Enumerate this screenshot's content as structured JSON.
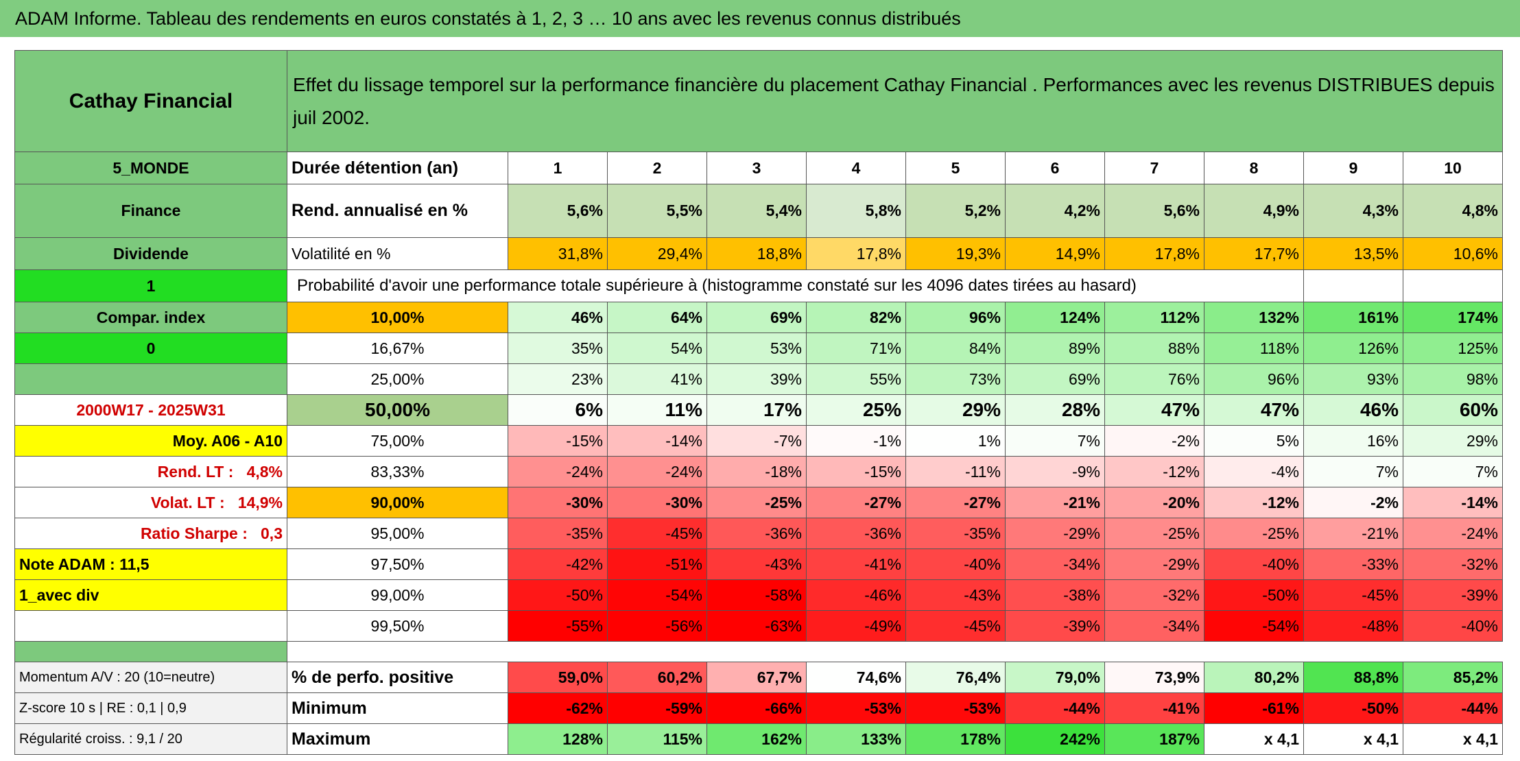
{
  "header": {
    "title": "ADAM Informe. Tableau des rendements en euros constatés à 1, 2, 3 … 10 ans avec les revenus connus distribués"
  },
  "table": {
    "rows": [
      [
        "Cathay Financial",
        "Effet du lissage temporel sur la performance financière du placement Cathay Financial . Performances avec les revenus DISTRIBUES depuis juil 2002."
      ],
      [
        "5_MONDE",
        "Durée détention (an)",
        "1",
        "2",
        "3",
        "4",
        "5",
        "6",
        "7",
        "8",
        "9",
        "10"
      ],
      [
        "Finance",
        "Rend. annualisé en %",
        "5,6%",
        "5,5%",
        "5,4%",
        "5,8%",
        "5,2%",
        "4,2%",
        "5,6%",
        "4,9%",
        "4,3%",
        "4,8%"
      ],
      [
        "Dividende",
        "Volatilité en %",
        "31,8%",
        "29,4%",
        "18,8%",
        "17,8%",
        "19,3%",
        "14,9%",
        "17,8%",
        "17,7%",
        "13,5%",
        "10,6%"
      ],
      [
        "1",
        "Probabilité d'avoir une performance totale supérieure à (histogramme constaté sur les 4096 dates tirées au hasard)"
      ],
      [
        "Compar. index",
        "10,00%",
        "46%",
        "64%",
        "69%",
        "82%",
        "96%",
        "124%",
        "112%",
        "132%",
        "161%",
        "174%"
      ],
      [
        "0",
        "16,67%",
        "35%",
        "54%",
        "53%",
        "71%",
        "84%",
        "89%",
        "88%",
        "118%",
        "126%",
        "125%"
      ],
      [
        null,
        "25,00%",
        "23%",
        "41%",
        "39%",
        "55%",
        "73%",
        "69%",
        "76%",
        "96%",
        "93%",
        "98%"
      ],
      [
        "2000W17 - 2025W31",
        "50,00%",
        "6%",
        "11%",
        "17%",
        "25%",
        "29%",
        "28%",
        "47%",
        "47%",
        "46%",
        "60%"
      ],
      [
        "Moy. A06 - A10",
        "75,00%",
        "-15%",
        "-14%",
        "-7%",
        "-1%",
        "1%",
        "7%",
        "-2%",
        "5%",
        "16%",
        "29%"
      ],
      [
        "Rend. LT :   4,8%",
        "83,33%",
        "-24%",
        "-24%",
        "-18%",
        "-15%",
        "-11%",
        "-9%",
        "-12%",
        "-4%",
        "7%",
        "7%"
      ],
      [
        "Volat. LT :   14,9%",
        "90,00%",
        "-30%",
        "-30%",
        "-25%",
        "-27%",
        "-27%",
        "-21%",
        "-20%",
        "-12%",
        "-2%",
        "-14%"
      ],
      [
        "Ratio Sharpe :   0,3",
        "95,00%",
        "-35%",
        "-45%",
        "-36%",
        "-36%",
        "-35%",
        "-29%",
        "-25%",
        "-25%",
        "-21%",
        "-24%"
      ],
      [
        "Note ADAM : 11,5",
        "97,50%",
        "-42%",
        "-51%",
        "-43%",
        "-41%",
        "-40%",
        "-34%",
        "-29%",
        "-40%",
        "-33%",
        "-32%"
      ],
      [
        "1_avec div",
        "99,00%",
        "-50%",
        "-54%",
        "-58%",
        "-46%",
        "-43%",
        "-38%",
        "-32%",
        "-50%",
        "-45%",
        "-39%"
      ],
      [
        null,
        "99,50%",
        "-55%",
        "-56%",
        "-63%",
        "-49%",
        "-45%",
        "-39%",
        "-34%",
        "-54%",
        "-48%",
        "-40%"
      ],
      [
        "Momentum A/V : 20 (10=neutre)",
        "% de perfo. positive",
        "59,0%",
        "60,2%",
        "67,7%",
        "74,6%",
        "76,4%",
        "79,0%",
        "73,9%",
        "80,2%",
        "88,8%",
        "85,2%"
      ],
      [
        "Z-score 10 s | RE : 0,1 | 0,9",
        "Minimum",
        "-62%",
        "-59%",
        "-66%",
        "-53%",
        "-53%",
        "-44%",
        "-41%",
        "-61%",
        "-50%",
        "-44%"
      ],
      [
        "Régularité croiss. : 9,1 / 20",
        "Maximum",
        "128%",
        "115%",
        "162%",
        "133%",
        "178%",
        "242%",
        "187%",
        "x 4,1",
        "x 4,1",
        "x 4,1"
      ]
    ]
  }
}
